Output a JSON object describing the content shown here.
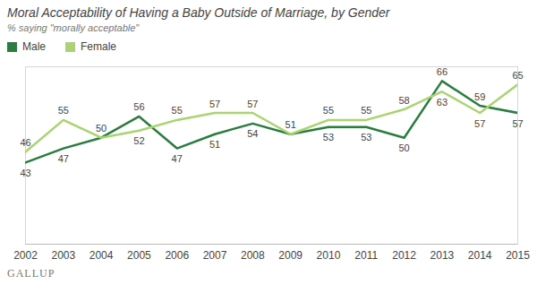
{
  "chart_data": {
    "type": "line",
    "title": "Moral Acceptability of Having a Baby Outside of Marriage, by Gender",
    "subtitle": "% saying \"morally acceptable\"",
    "caption": "GALLUP",
    "x": [
      2002,
      2003,
      2004,
      2005,
      2006,
      2007,
      2008,
      2009,
      2010,
      2011,
      2012,
      2013,
      2014,
      2015
    ],
    "series": [
      {
        "name": "Male",
        "color": "#2a7d3e",
        "values": [
          43,
          47,
          50,
          56,
          47,
          51,
          54,
          51,
          53,
          53,
          50,
          66,
          59,
          57
        ]
      },
      {
        "name": "Female",
        "color": "#a9d46f",
        "values": [
          46,
          55,
          50,
          52,
          55,
          57,
          57,
          51,
          55,
          55,
          58,
          63,
          57,
          65
        ]
      }
    ],
    "xlim": [
      2002,
      2015
    ],
    "xticks": [
      2002,
      2003,
      2004,
      2005,
      2006,
      2007,
      2008,
      2009,
      2010,
      2011,
      2012,
      2013,
      2014,
      2015
    ],
    "ylim": [
      20,
      70
    ],
    "tick_labels": "x",
    "grid": false,
    "legend": "top-left",
    "data_labels": true
  }
}
